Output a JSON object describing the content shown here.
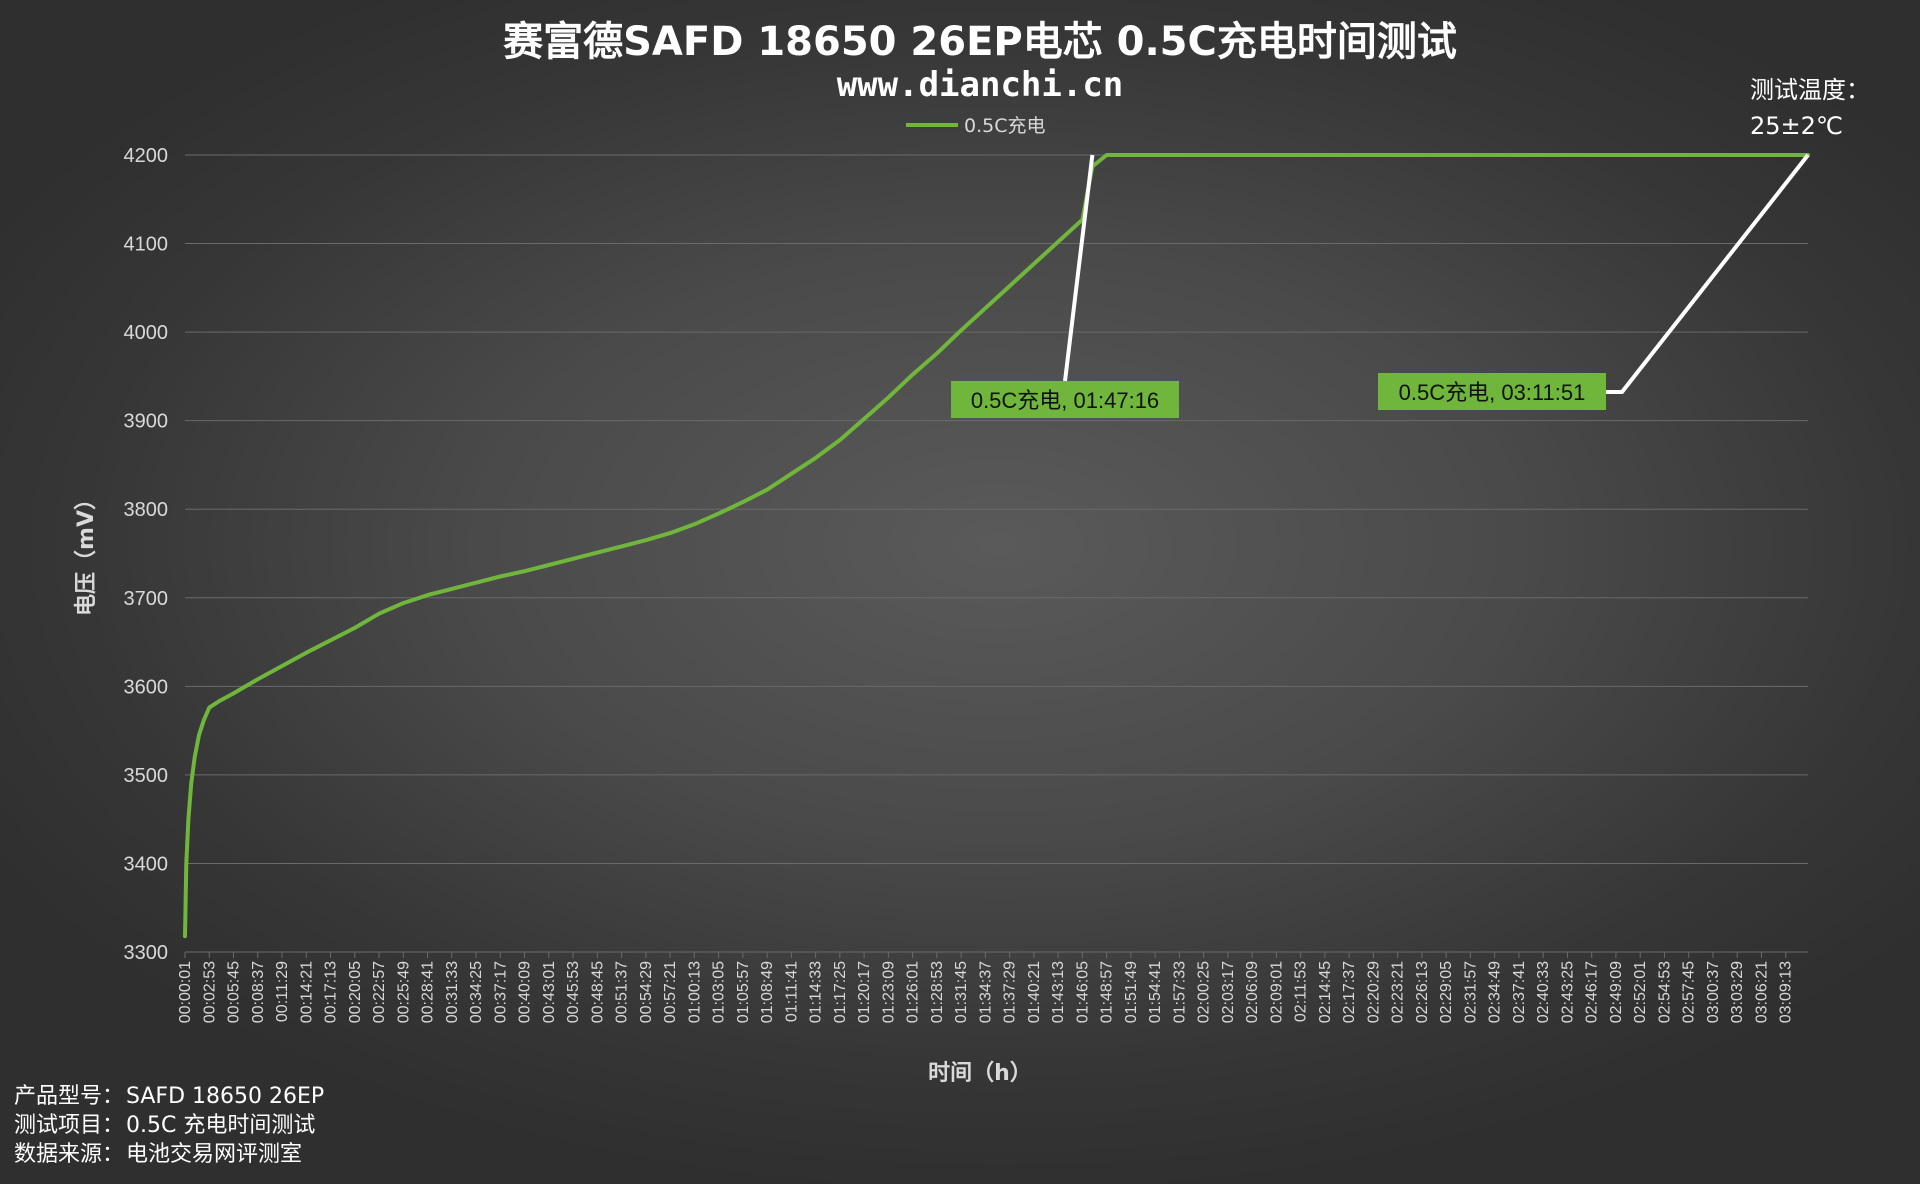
{
  "title": "赛富德SAFD 18650 26EP电芯 0.5C充电时间测试",
  "subtitle": "www.dianchi.cn",
  "temperature": {
    "label": "测试温度：",
    "value": "25±2℃"
  },
  "footer": [
    {
      "label": "产品型号：",
      "value": "SAFD 18650 26EP"
    },
    {
      "label": "测试项目：",
      "value": "0.5C 充电时间测试"
    },
    {
      "label": "数据来源：",
      "value": "电池交易网评测室"
    }
  ],
  "colors": {
    "series": "#70b63c",
    "leader": "#ffffff",
    "grid": "#6a6a6a"
  },
  "chart_data": {
    "type": "line",
    "xlabel": "时间（h）",
    "ylabel": "电压（mV）",
    "ylim": [
      3300,
      4200
    ],
    "yticks": [
      3300,
      3400,
      3500,
      3600,
      3700,
      3800,
      3900,
      4000,
      4100,
      4200
    ],
    "xlim": [
      "00:00:01",
      "03:11:51"
    ],
    "xticks": [
      "00:00:01",
      "00:02:53",
      "00:05:45",
      "00:08:37",
      "00:11:29",
      "00:14:21",
      "00:17:13",
      "00:20:05",
      "00:22:57",
      "00:25:49",
      "00:28:41",
      "00:31:33",
      "00:34:25",
      "00:37:17",
      "00:40:09",
      "00:43:01",
      "00:45:53",
      "00:48:45",
      "00:51:37",
      "00:54:29",
      "00:57:21",
      "01:00:13",
      "01:03:05",
      "01:05:57",
      "01:08:49",
      "01:11:41",
      "01:14:33",
      "01:17:25",
      "01:20:17",
      "01:23:09",
      "01:26:01",
      "01:28:53",
      "01:31:45",
      "01:34:37",
      "01:37:29",
      "01:40:21",
      "01:43:13",
      "01:46:05",
      "01:48:57",
      "01:51:49",
      "01:54:41",
      "01:57:33",
      "02:00:25",
      "02:03:17",
      "02:06:09",
      "02:09:01",
      "02:11:53",
      "02:14:45",
      "02:17:37",
      "02:20:29",
      "02:23:21",
      "02:26:13",
      "02:29:05",
      "02:31:57",
      "02:34:49",
      "02:37:41",
      "02:40:33",
      "02:43:25",
      "02:46:17",
      "02:49:09",
      "02:52:01",
      "02:54:53",
      "02:57:45",
      "03:00:37",
      "03:03:29",
      "03:06:21",
      "03:09:13"
    ],
    "legend": "top-center",
    "grid": true,
    "series": [
      {
        "name": "0.5C充电",
        "x": [
          "00:00:01",
          "00:00:10",
          "00:00:25",
          "00:00:45",
          "00:01:10",
          "00:01:40",
          "00:02:15",
          "00:02:53",
          "00:04:00",
          "00:05:45",
          "00:08:37",
          "00:11:29",
          "00:14:21",
          "00:17:13",
          "00:20:05",
          "00:22:57",
          "00:25:49",
          "00:28:41",
          "00:31:33",
          "00:34:25",
          "00:37:17",
          "00:40:09",
          "00:43:01",
          "00:45:53",
          "00:48:45",
          "00:51:37",
          "00:54:29",
          "00:57:21",
          "01:00:13",
          "01:03:05",
          "01:05:57",
          "01:08:49",
          "01:11:41",
          "01:14:33",
          "01:17:25",
          "01:20:17",
          "01:23:09",
          "01:26:01",
          "01:28:53",
          "01:31:45",
          "01:34:37",
          "01:37:29",
          "01:40:21",
          "01:43:13",
          "01:46:05",
          "01:47:16",
          "01:48:57",
          "02:00:25",
          "02:20:29",
          "02:40:33",
          "03:00:37",
          "03:11:51"
        ],
        "y": [
          3318,
          3400,
          3450,
          3490,
          3520,
          3545,
          3562,
          3576,
          3583,
          3592,
          3608,
          3623,
          3638,
          3652,
          3666,
          3682,
          3694,
          3703,
          3710,
          3717,
          3724,
          3730,
          3737,
          3744,
          3751,
          3758,
          3765,
          3773,
          3783,
          3795,
          3808,
          3822,
          3840,
          3858,
          3878,
          3902,
          3926,
          3952,
          3976,
          4002,
          4027,
          4052,
          4077,
          4102,
          4127,
          4187,
          4200,
          4200,
          4200,
          4200,
          4200,
          4200
        ]
      }
    ],
    "annotations": [
      {
        "label": "0.5C充电, 01:47:16",
        "x": "01:47:16",
        "y": 4200
      },
      {
        "label": "0.5C充电, 03:11:51",
        "x": "03:11:51",
        "y": 4200
      }
    ]
  }
}
